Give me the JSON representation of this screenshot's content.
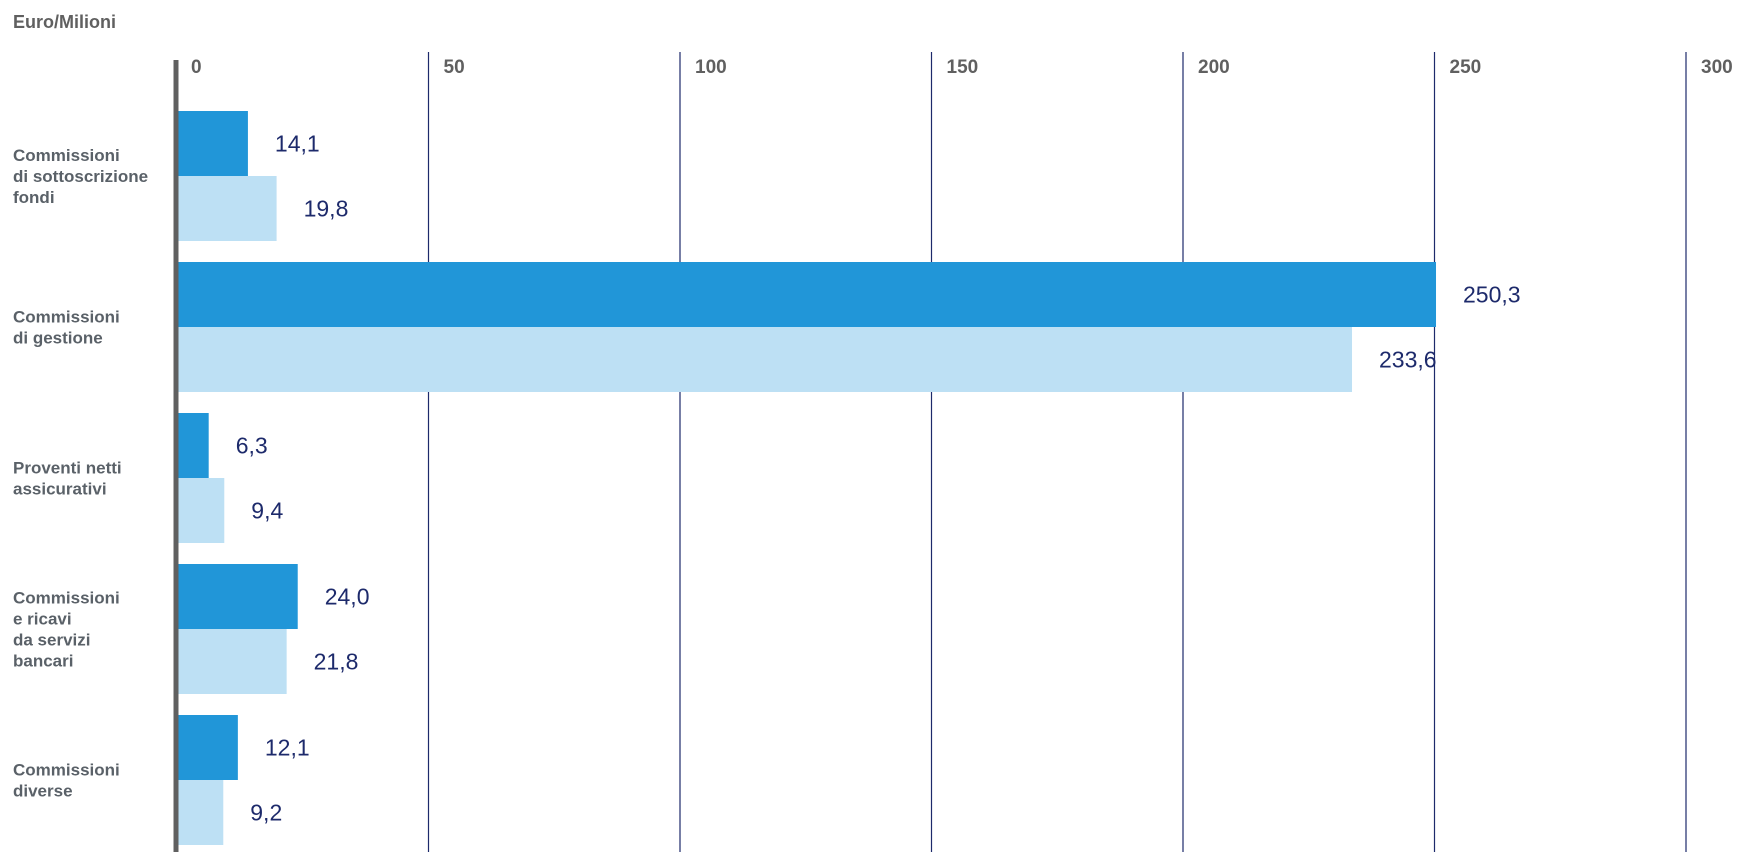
{
  "chart_data": {
    "type": "bar",
    "orientation": "horizontal",
    "unit_label": "Euro/Milioni",
    "xlim": [
      0,
      300
    ],
    "x_ticks": [
      0,
      50,
      100,
      150,
      200,
      250,
      300
    ],
    "x_tick_labels": [
      "0",
      "50",
      "100",
      "150",
      "200",
      "250",
      "300"
    ],
    "x_axis_position": "top",
    "grid": true,
    "categories": [
      [
        "Commissioni",
        "di sottoscrizione",
        "fondi"
      ],
      [
        "Commissioni",
        "di gestione"
      ],
      [
        "Proventi netti",
        "assicurativi"
      ],
      [
        "Commissioni",
        "e ricavi",
        "da servizi",
        "bancari"
      ],
      [
        "Commissioni",
        "diverse"
      ]
    ],
    "series": [
      {
        "values": [
          14.1,
          250.3,
          6.3,
          24.0,
          12.1
        ],
        "labels": [
          "14,1",
          "250,3",
          "6,3",
          "24,0",
          "12,1"
        ],
        "color": "#2196d8"
      },
      {
        "values": [
          19.8,
          233.6,
          9.4,
          21.8,
          9.2
        ],
        "labels": [
          "19,8",
          "233,6",
          "9,4",
          "21,8",
          "9,2"
        ],
        "color": "#bde0f4"
      }
    ],
    "grid_color": "#1d2a6b",
    "axis_color": "#606060",
    "value_label_color": "#1d2a6b"
  }
}
